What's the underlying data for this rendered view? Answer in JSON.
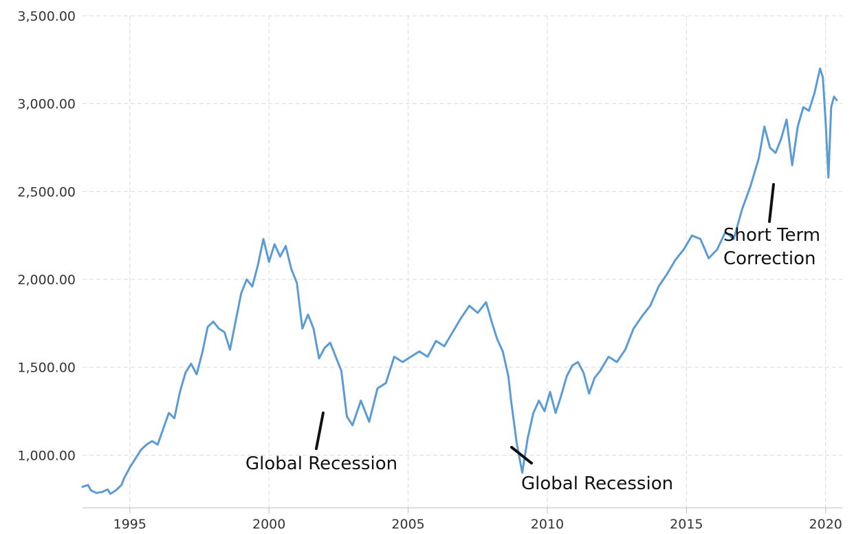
{
  "chart_data": {
    "type": "line",
    "title": "",
    "xlabel": "",
    "ylabel": "",
    "xlim": [
      1993.3,
      2020.6
    ],
    "ylim": [
      700,
      3500
    ],
    "grid": true,
    "x_ticks": [
      "1995",
      "2000",
      "2005",
      "2010",
      "2015",
      "2020"
    ],
    "y_ticks": [
      "1,000.00",
      "1,500.00",
      "2,000.00",
      "2,500.00",
      "3,000.00",
      "3,500.00"
    ],
    "colors": {
      "line": "#5b9bd5",
      "grid": "#d9d9d9",
      "axis": "#bbbbbb",
      "annotation": "#111111"
    },
    "series": [
      {
        "x": [
          1993.3,
          1993.5,
          1993.6,
          1993.8,
          1994.0,
          1994.2,
          1994.3,
          1994.5,
          1994.7,
          1994.8,
          1995.0,
          1995.2,
          1995.4,
          1995.6,
          1995.8,
          1996.0,
          1996.2,
          1996.4,
          1996.6,
          1996.8,
          1997.0,
          1997.2,
          1997.4,
          1997.6,
          1997.8,
          1998.0,
          1998.2,
          1998.4,
          1998.6,
          1998.8,
          1999.0,
          1999.2,
          1999.4,
          1999.6,
          1999.8,
          2000.0,
          2000.2,
          2000.4,
          2000.6,
          2000.8,
          2001.0,
          2001.2,
          2001.4,
          2001.6,
          2001.8,
          2002.0,
          2002.2,
          2002.4,
          2002.6,
          2002.8,
          2003.0,
          2003.3,
          2003.6,
          2003.9,
          2004.2,
          2004.5,
          2004.8,
          2005.1,
          2005.4,
          2005.7,
          2006.0,
          2006.3,
          2006.6,
          2006.9,
          2007.2,
          2007.5,
          2007.8,
          2008.0,
          2008.2,
          2008.4,
          2008.6,
          2008.7,
          2008.9,
          2009.1,
          2009.3,
          2009.5,
          2009.7,
          2009.9,
          2010.1,
          2010.3,
          2010.5,
          2010.7,
          2010.9,
          2011.1,
          2011.3,
          2011.5,
          2011.7,
          2011.9,
          2012.2,
          2012.5,
          2012.8,
          2013.1,
          2013.4,
          2013.7,
          2014.0,
          2014.3,
          2014.6,
          2014.9,
          2015.2,
          2015.5,
          2015.8,
          2016.1,
          2016.4,
          2016.7,
          2017.0,
          2017.3,
          2017.6,
          2017.8,
          2018.0,
          2018.2,
          2018.4,
          2018.6,
          2018.8,
          2019.0,
          2019.2,
          2019.4,
          2019.6,
          2019.8,
          2019.9,
          2020.0,
          2020.1,
          2020.2,
          2020.3,
          2020.4
        ],
        "values": [
          820,
          830,
          800,
          785,
          790,
          805,
          780,
          800,
          830,
          870,
          930,
          980,
          1030,
          1060,
          1080,
          1060,
          1150,
          1240,
          1210,
          1360,
          1470,
          1520,
          1460,
          1580,
          1730,
          1760,
          1720,
          1700,
          1600,
          1760,
          1920,
          2000,
          1960,
          2080,
          2230,
          2100,
          2200,
          2130,
          2190,
          2060,
          1980,
          1720,
          1800,
          1720,
          1550,
          1610,
          1640,
          1560,
          1480,
          1220,
          1170,
          1310,
          1190,
          1380,
          1410,
          1560,
          1530,
          1560,
          1590,
          1560,
          1650,
          1620,
          1700,
          1780,
          1850,
          1810,
          1870,
          1760,
          1660,
          1590,
          1450,
          1310,
          1070,
          900,
          1100,
          1240,
          1310,
          1250,
          1360,
          1240,
          1340,
          1450,
          1510,
          1530,
          1470,
          1350,
          1440,
          1480,
          1560,
          1530,
          1600,
          1720,
          1790,
          1850,
          1960,
          2030,
          2110,
          2170,
          2250,
          2230,
          2120,
          2170,
          2270,
          2230,
          2400,
          2530,
          2690,
          2870,
          2750,
          2720,
          2800,
          2910,
          2650,
          2870,
          2980,
          2960,
          3060,
          3200,
          3150,
          2900,
          2580,
          2980,
          3040,
          3020
        ]
      }
    ],
    "annotations": [
      {
        "text": "Global Recession",
        "x": 2002.3,
        "y": 1100
      },
      {
        "text": "Global Recession",
        "x": 2008.9,
        "y": 890
      },
      {
        "text_lines": [
          "Short Term",
          "Correction"
        ],
        "x": 2018.4,
        "y": 2480
      }
    ]
  }
}
